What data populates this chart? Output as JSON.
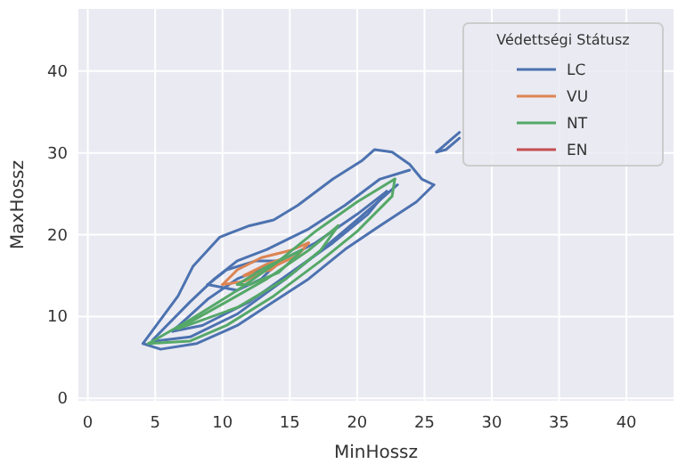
{
  "chart_data": {
    "type": "line",
    "xlabel": "MinHossz",
    "ylabel": "MaxHossz",
    "legend_title": "Védettségi Státusz",
    "xlim": [
      -0.7,
      43.5
    ],
    "ylim": [
      -0.3,
      47.6
    ],
    "xticks": [
      0,
      5,
      10,
      15,
      20,
      25,
      30,
      35,
      40
    ],
    "yticks": [
      0,
      10,
      20,
      30,
      40
    ],
    "grid": true,
    "legend": "top right",
    "series": [
      {
        "name": "LC",
        "color": "#4c72b0",
        "x": [
          4.1,
          6.7,
          7.8,
          9.8,
          12.0,
          13.8,
          15.6,
          18.2,
          20.4,
          21.3,
          22.6,
          23.9,
          24.8,
          25.7
        ],
        "values": [
          6.7,
          12.5,
          16.1,
          19.7,
          21.1,
          21.8,
          23.6,
          26.8,
          29.1,
          30.4,
          30.1,
          28.6,
          26.8,
          26.1
        ]
      },
      {
        "color": "#4c72b0",
        "x": [
          4.1,
          5.4,
          8.1,
          11.1,
          13.8,
          16.4,
          19.1,
          21.7,
          24.4,
          25.7
        ],
        "values": [
          6.7,
          6.0,
          6.7,
          8.9,
          11.8,
          14.6,
          18.2,
          21.1,
          24.0,
          26.1
        ]
      },
      {
        "color": "#4c72b0",
        "x": [
          4.8,
          7.6,
          9.4,
          11.1,
          13.3,
          16.4,
          19.1,
          21.7,
          23.9
        ],
        "values": [
          7.1,
          11.8,
          14.6,
          16.8,
          18.2,
          20.7,
          23.6,
          26.8,
          27.9
        ]
      },
      {
        "color": "#4c72b0",
        "x": [
          5.0,
          7.6,
          11.1,
          14.7,
          17.4,
          20.0,
          23.0
        ],
        "values": [
          7.0,
          7.5,
          10.3,
          14.6,
          18.2,
          21.8,
          26.1
        ]
      },
      {
        "color": "#4c72b0",
        "x": [
          6.3,
          8.9,
          11.1,
          13.8,
          16.9,
          20.0,
          22.2
        ],
        "values": [
          8.2,
          12.1,
          14.6,
          16.4,
          19.0,
          22.5,
          25.3
        ]
      },
      {
        "color": "#4c72b0",
        "x": [
          6.3,
          8.5,
          12.0,
          15.1,
          18.2,
          20.8,
          22.2
        ],
        "values": [
          8.2,
          8.9,
          11.8,
          15.4,
          19.0,
          22.5,
          25.3
        ]
      },
      {
        "color": "#4c72b0",
        "x": [
          8.9,
          10.3,
          12.5,
          14.2
        ],
        "values": [
          13.9,
          15.7,
          16.8,
          16.8
        ]
      },
      {
        "color": "#4c72b0",
        "x": [
          8.9,
          11.1,
          12.9,
          14.2
        ],
        "values": [
          13.9,
          13.2,
          14.6,
          16.8
        ]
      },
      {
        "color": "#4c72b0",
        "x": [
          25.9,
          27.6
        ],
        "values": [
          30.1,
          32.5
        ]
      },
      {
        "color": "#4c72b0",
        "x": [
          25.9,
          26.6,
          27.6
        ],
        "values": [
          30.1,
          30.4,
          31.8
        ]
      },
      {
        "name": "VU",
        "color": "#dd8452",
        "x": [
          10.0,
          11.1,
          12.9,
          15.1,
          16.4
        ],
        "values": [
          13.9,
          15.7,
          17.2,
          18.1,
          19.0
        ]
      },
      {
        "color": "#dd8452",
        "x": [
          10.0,
          11.6,
          13.8,
          15.6,
          16.4
        ],
        "values": [
          13.9,
          14.3,
          16.1,
          17.5,
          19.0
        ]
      },
      {
        "color": "#dd8452",
        "x": [
          11.6,
          13.3,
          14.7
        ],
        "values": [
          15.0,
          16.4,
          17.2
        ]
      },
      {
        "color": "#dd8452",
        "x": [
          11.6,
          13.6,
          14.7
        ],
        "values": [
          15.0,
          15.7,
          17.2
        ]
      },
      {
        "name": "NT",
        "color": "#55a868",
        "x": [
          4.5,
          7.6,
          11.1,
          14.2,
          16.9,
          20.0,
          22.8
        ],
        "values": [
          6.7,
          9.6,
          13.2,
          16.8,
          20.4,
          24.0,
          26.8
        ]
      },
      {
        "color": "#55a868",
        "x": [
          4.5,
          7.6,
          10.3,
          13.8,
          17.3,
          20.0,
          22.6,
          22.8
        ],
        "values": [
          6.7,
          7.0,
          8.9,
          12.5,
          16.8,
          20.4,
          24.7,
          26.8
        ]
      },
      {
        "color": "#55a868",
        "x": [
          6.7,
          10.3,
          13.3,
          16.4,
          18.6
        ],
        "values": [
          8.5,
          11.8,
          14.6,
          18.1,
          21.1
        ]
      },
      {
        "color": "#55a868",
        "x": [
          6.7,
          11.1,
          14.7,
          17.3,
          18.6
        ],
        "values": [
          8.5,
          11.1,
          14.6,
          18.1,
          21.1
        ]
      },
      {
        "color": "#55a868",
        "x": [
          11.1,
          13.3,
          15.9
        ],
        "values": [
          13.9,
          16.1,
          18.1
        ]
      },
      {
        "color": "#55a868",
        "x": [
          11.1,
          12.0,
          14.2,
          15.9
        ],
        "values": [
          13.9,
          13.9,
          15.4,
          18.1
        ]
      },
      {
        "name": "EN",
        "color": "#c44e52"
      }
    ]
  }
}
